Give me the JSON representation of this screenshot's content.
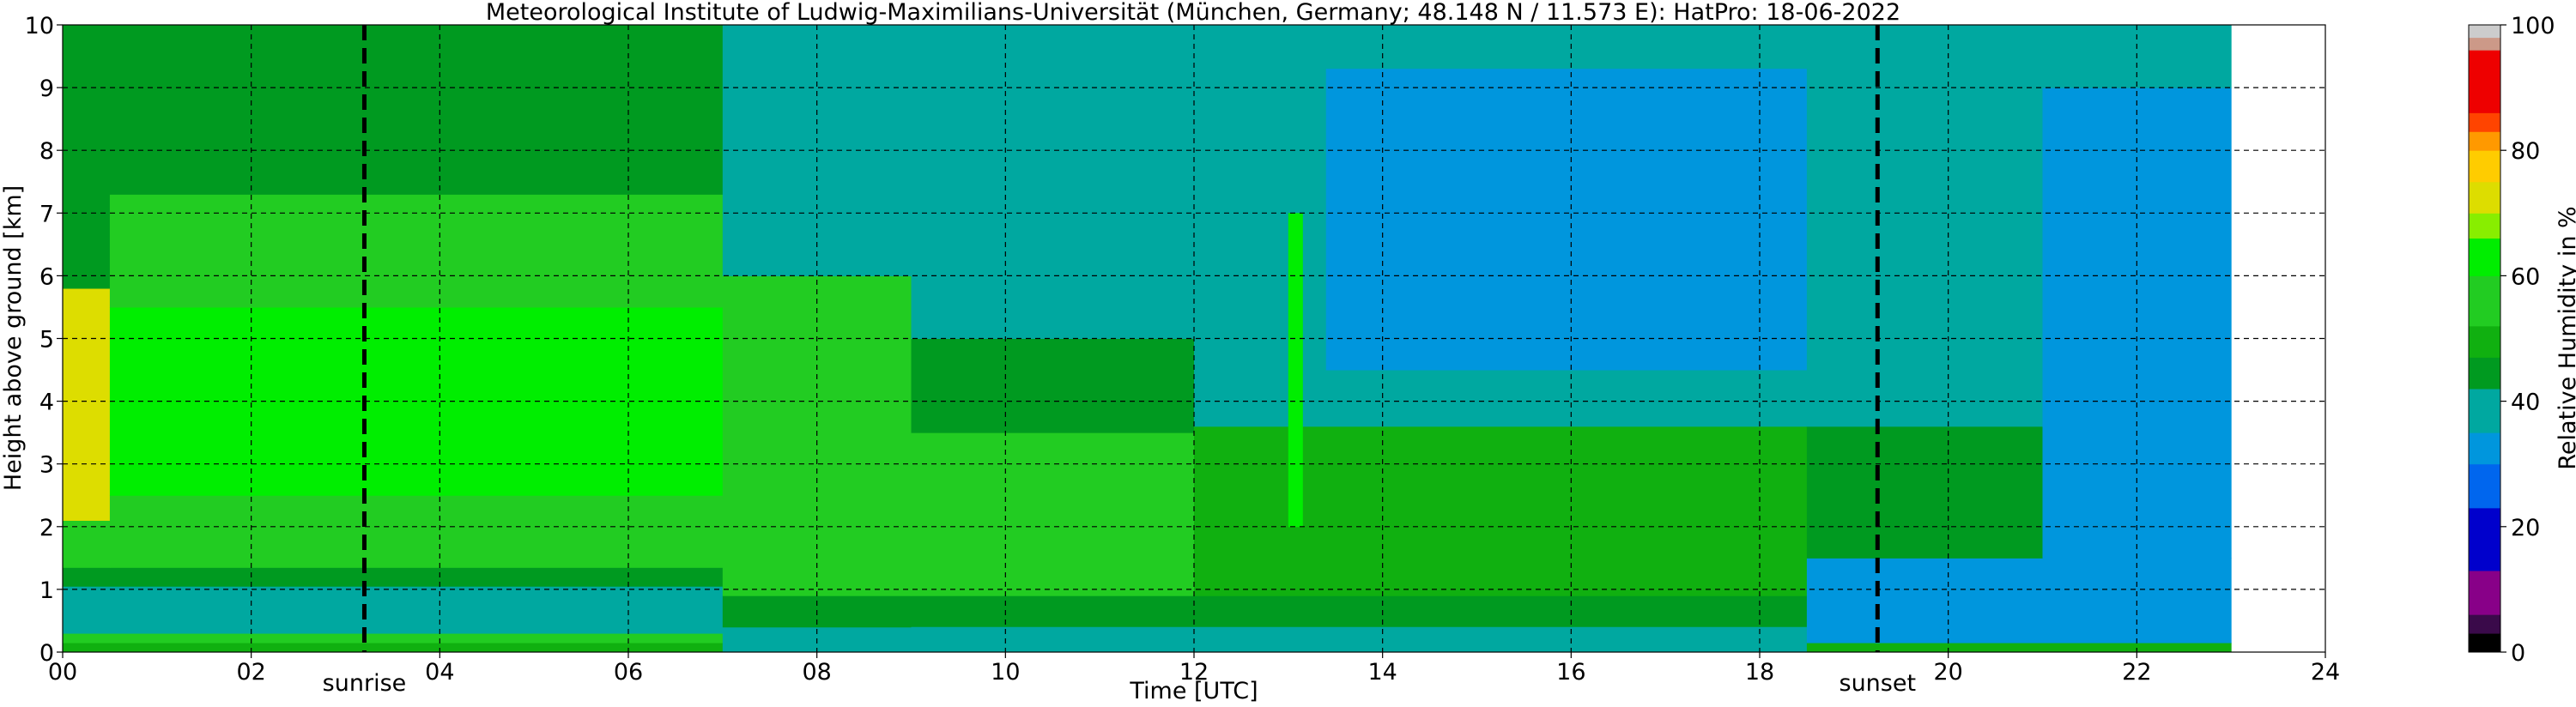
{
  "chart_data": {
    "type": "heatmap",
    "title": "Meteorological Institute of Ludwig-Maximilians-Universität (München, Germany; 48.148 N / 11.573 E):    HatPro: 18-06-2022",
    "xlabel": "Time [UTC]",
    "ylabel": "Height above ground [km]",
    "xlim": [
      0,
      24
    ],
    "ylim": [
      0,
      10
    ],
    "x_ticks": [
      0,
      2,
      4,
      6,
      8,
      10,
      12,
      14,
      16,
      18,
      20,
      22,
      24
    ],
    "x_tick_labels": [
      "00",
      "02",
      "04",
      "06",
      "08",
      "10",
      "12",
      "14",
      "16",
      "18",
      "20",
      "22",
      "24"
    ],
    "y_ticks": [
      0,
      1,
      2,
      3,
      4,
      5,
      6,
      7,
      8,
      9,
      10
    ],
    "y_tick_labels": [
      "0",
      "1",
      "2",
      "3",
      "4",
      "5",
      "6",
      "7",
      "8",
      "9",
      "10"
    ],
    "grid": true,
    "data_end_hour": 23.0,
    "events": [
      {
        "label": "sunrise",
        "x": 3.2
      },
      {
        "label": "sunset",
        "x": 19.25
      }
    ],
    "colorbar": {
      "label": "Relative Humidity in %",
      "range": [
        0,
        100
      ],
      "ticks": [
        0,
        20,
        40,
        60,
        80,
        100
      ],
      "tick_labels": [
        "0",
        "20",
        "40",
        "60",
        "80",
        "100"
      ],
      "bands": [
        {
          "from": 0,
          "to": 3,
          "color": "#000000"
        },
        {
          "from": 3,
          "to": 6,
          "color": "#3a0a4a"
        },
        {
          "from": 6,
          "to": 13,
          "color": "#880088"
        },
        {
          "from": 13,
          "to": 23,
          "color": "#0000cc"
        },
        {
          "from": 23,
          "to": 30,
          "color": "#0066ee"
        },
        {
          "from": 30,
          "to": 35,
          "color": "#0096dd"
        },
        {
          "from": 35,
          "to": 42,
          "color": "#00a8a0"
        },
        {
          "from": 42,
          "to": 47,
          "color": "#009a20"
        },
        {
          "from": 47,
          "to": 52,
          "color": "#10b010"
        },
        {
          "from": 52,
          "to": 60,
          "color": "#22cc22"
        },
        {
          "from": 60,
          "to": 66,
          "color": "#00ee00"
        },
        {
          "from": 66,
          "to": 70,
          "color": "#88ee00"
        },
        {
          "from": 70,
          "to": 75,
          "color": "#dddd00"
        },
        {
          "from": 75,
          "to": 80,
          "color": "#ffcc00"
        },
        {
          "from": 80,
          "to": 83,
          "color": "#ff9900"
        },
        {
          "from": 83,
          "to": 86,
          "color": "#ff4400"
        },
        {
          "from": 86,
          "to": 96,
          "color": "#ee0000"
        },
        {
          "from": 96,
          "to": 98,
          "color": "#cc9988"
        },
        {
          "from": 98,
          "to": 100,
          "color": "#cccccc"
        }
      ]
    },
    "regions": [
      {
        "x": [
          0,
          7
        ],
        "y": [
          0,
          0.15
        ],
        "rh": 49
      },
      {
        "x": [
          0,
          7
        ],
        "y": [
          0.15,
          0.3
        ],
        "rh": 55
      },
      {
        "x": [
          0,
          7
        ],
        "y": [
          0.3,
          1.05
        ],
        "rh": 40
      },
      {
        "x": [
          0,
          7
        ],
        "y": [
          1.05,
          1.35
        ],
        "rh": 46
      },
      {
        "x": [
          0,
          0.5
        ],
        "y": [
          1.35,
          2.1
        ],
        "rh": 55
      },
      {
        "x": [
          0,
          0.5
        ],
        "y": [
          2.1,
          5.8
        ],
        "rh": 74
      },
      {
        "x": [
          0,
          0.5
        ],
        "y": [
          5.8,
          10
        ],
        "rh": 46
      },
      {
        "x": [
          0.5,
          7
        ],
        "y": [
          1.35,
          2.5
        ],
        "rh": 57
      },
      {
        "x": [
          0.5,
          2
        ],
        "y": [
          2.5,
          5.5
        ],
        "rh": 65
      },
      {
        "x": [
          2,
          7
        ],
        "y": [
          2.5,
          5.5
        ],
        "rh": 60
      },
      {
        "x": [
          0.5,
          7
        ],
        "y": [
          5.5,
          7.3
        ],
        "rh": 55
      },
      {
        "x": [
          0.5,
          7
        ],
        "y": [
          7.3,
          10
        ],
        "rh": 46
      },
      {
        "x": [
          7,
          9
        ],
        "y": [
          0,
          0.4
        ],
        "rh": 40
      },
      {
        "x": [
          7,
          18.5
        ],
        "y": [
          0.4,
          0.9
        ],
        "rh": 46
      },
      {
        "x": [
          7,
          9
        ],
        "y": [
          0.9,
          6.0
        ],
        "rh": 55
      },
      {
        "x": [
          7,
          9
        ],
        "y": [
          6.0,
          10
        ],
        "rh": 40
      },
      {
        "x": [
          9,
          18.5
        ],
        "y": [
          0,
          0.4
        ],
        "rh": 40
      },
      {
        "x": [
          9,
          12
        ],
        "y": [
          0.9,
          3.5
        ],
        "rh": 53
      },
      {
        "x": [
          9,
          12
        ],
        "y": [
          3.5,
          5.0
        ],
        "rh": 46
      },
      {
        "x": [
          9,
          12
        ],
        "y": [
          5.0,
          10
        ],
        "rh": 39
      },
      {
        "x": [
          12,
          18.5
        ],
        "y": [
          0.9,
          3.6
        ],
        "rh": 50
      },
      {
        "x": [
          12,
          18.5
        ],
        "y": [
          3.6,
          10
        ],
        "rh": 39
      },
      {
        "x": [
          13.4,
          18.5
        ],
        "y": [
          4.5,
          9.3
        ],
        "rh": 32
      },
      {
        "x": [
          18.5,
          23
        ],
        "y": [
          0,
          0.15
        ],
        "rh": 49
      },
      {
        "x": [
          18.5,
          23
        ],
        "y": [
          0.15,
          1.5
        ],
        "rh": 32
      },
      {
        "x": [
          18.5,
          21
        ],
        "y": [
          1.5,
          3.6
        ],
        "rh": 46
      },
      {
        "x": [
          18.5,
          21
        ],
        "y": [
          3.6,
          10
        ],
        "rh": 38
      },
      {
        "x": [
          21,
          23
        ],
        "y": [
          1.5,
          9.0
        ],
        "rh": 33
      },
      {
        "x": [
          21,
          23
        ],
        "y": [
          9.0,
          10
        ],
        "rh": 40
      },
      {
        "x": [
          13.0,
          13.15
        ],
        "y": [
          2.0,
          7.0
        ],
        "rh": 62
      }
    ]
  }
}
